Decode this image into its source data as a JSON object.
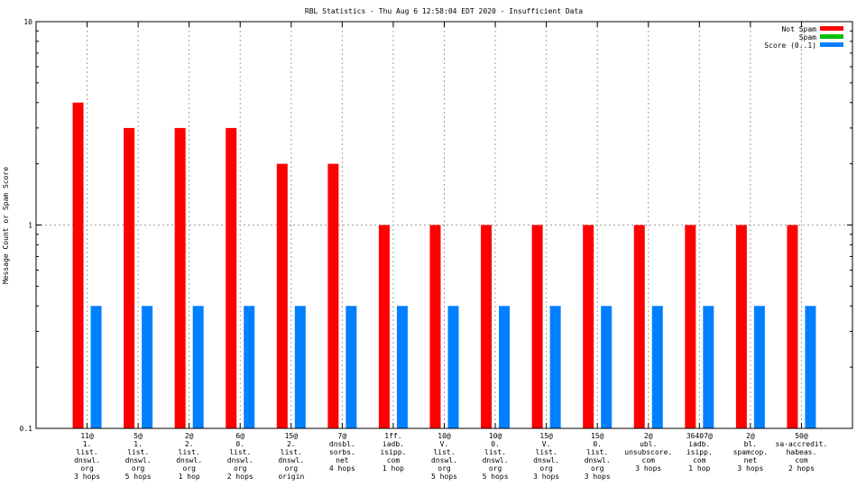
{
  "chart_data": {
    "type": "bar",
    "title": "RBL Statistics - Thu Aug  6 12:58:04 EDT 2020 - Insufficient Data",
    "ylabel": "Message Count or Spam Score",
    "xlabel": "",
    "yscale": "log",
    "ylim": [
      0.1,
      10
    ],
    "y_ticks": [
      "0.1",
      "1",
      "10"
    ],
    "grid": true,
    "legend_position": "top-right",
    "categories": [
      [
        "11@",
        "1.",
        "list.",
        "dnswl.",
        "org",
        "3 hops"
      ],
      [
        "5@",
        "1.",
        "list.",
        "dnswl.",
        "org",
        "5 hops"
      ],
      [
        "2@",
        "2.",
        "list.",
        "dnswl.",
        "org",
        "1 hop"
      ],
      [
        "6@",
        "0.",
        "list.",
        "dnswl.",
        "org",
        "2 hops"
      ],
      [
        "15@",
        "2.",
        "list.",
        "dnswl.",
        "org",
        "origin"
      ],
      [
        "7@",
        "dnsbl.",
        "sorbs.",
        "net",
        "4 hops"
      ],
      [
        "1ff.",
        "iadb.",
        "isipp.",
        "com",
        "1 hop"
      ],
      [
        "10@",
        "V.",
        "list.",
        "dnswl.",
        "org",
        "5 hops"
      ],
      [
        "10@",
        "0.",
        "list.",
        "dnswl.",
        "org",
        "5 hops"
      ],
      [
        "15@",
        "V.",
        "list.",
        "dnswl.",
        "org",
        "3 hops"
      ],
      [
        "15@",
        "0.",
        "list.",
        "dnswl.",
        "org",
        "3 hops"
      ],
      [
        "2@",
        "ubl.",
        "unsubscore.",
        "com",
        "3 hops"
      ],
      [
        "36407@",
        "iadb.",
        "isipp.",
        "com",
        "1 hop"
      ],
      [
        "2@",
        "bl.",
        "spamcop.",
        "net",
        "3 hops"
      ],
      [
        "50@",
        "sa-accredit.",
        "habeas.",
        "com",
        "2 hops"
      ]
    ],
    "series": [
      {
        "name": "Not Spam",
        "color": "#ff0000",
        "values": [
          4,
          3,
          3,
          3,
          2,
          2,
          1,
          1,
          1,
          1,
          1,
          1,
          1,
          1,
          1
        ]
      },
      {
        "name": "Spam",
        "color": "#00c000",
        "values": [
          0,
          0,
          0,
          0,
          0,
          0,
          0,
          0,
          0,
          0,
          0,
          0,
          0,
          0,
          0
        ]
      },
      {
        "name": "Score (0..1)",
        "color": "#0080ff",
        "values": [
          0.4,
          0.4,
          0.4,
          0.4,
          0.4,
          0.4,
          0.4,
          0.4,
          0.4,
          0.4,
          0.4,
          0.4,
          0.4,
          0.4,
          0.4
        ]
      }
    ]
  }
}
